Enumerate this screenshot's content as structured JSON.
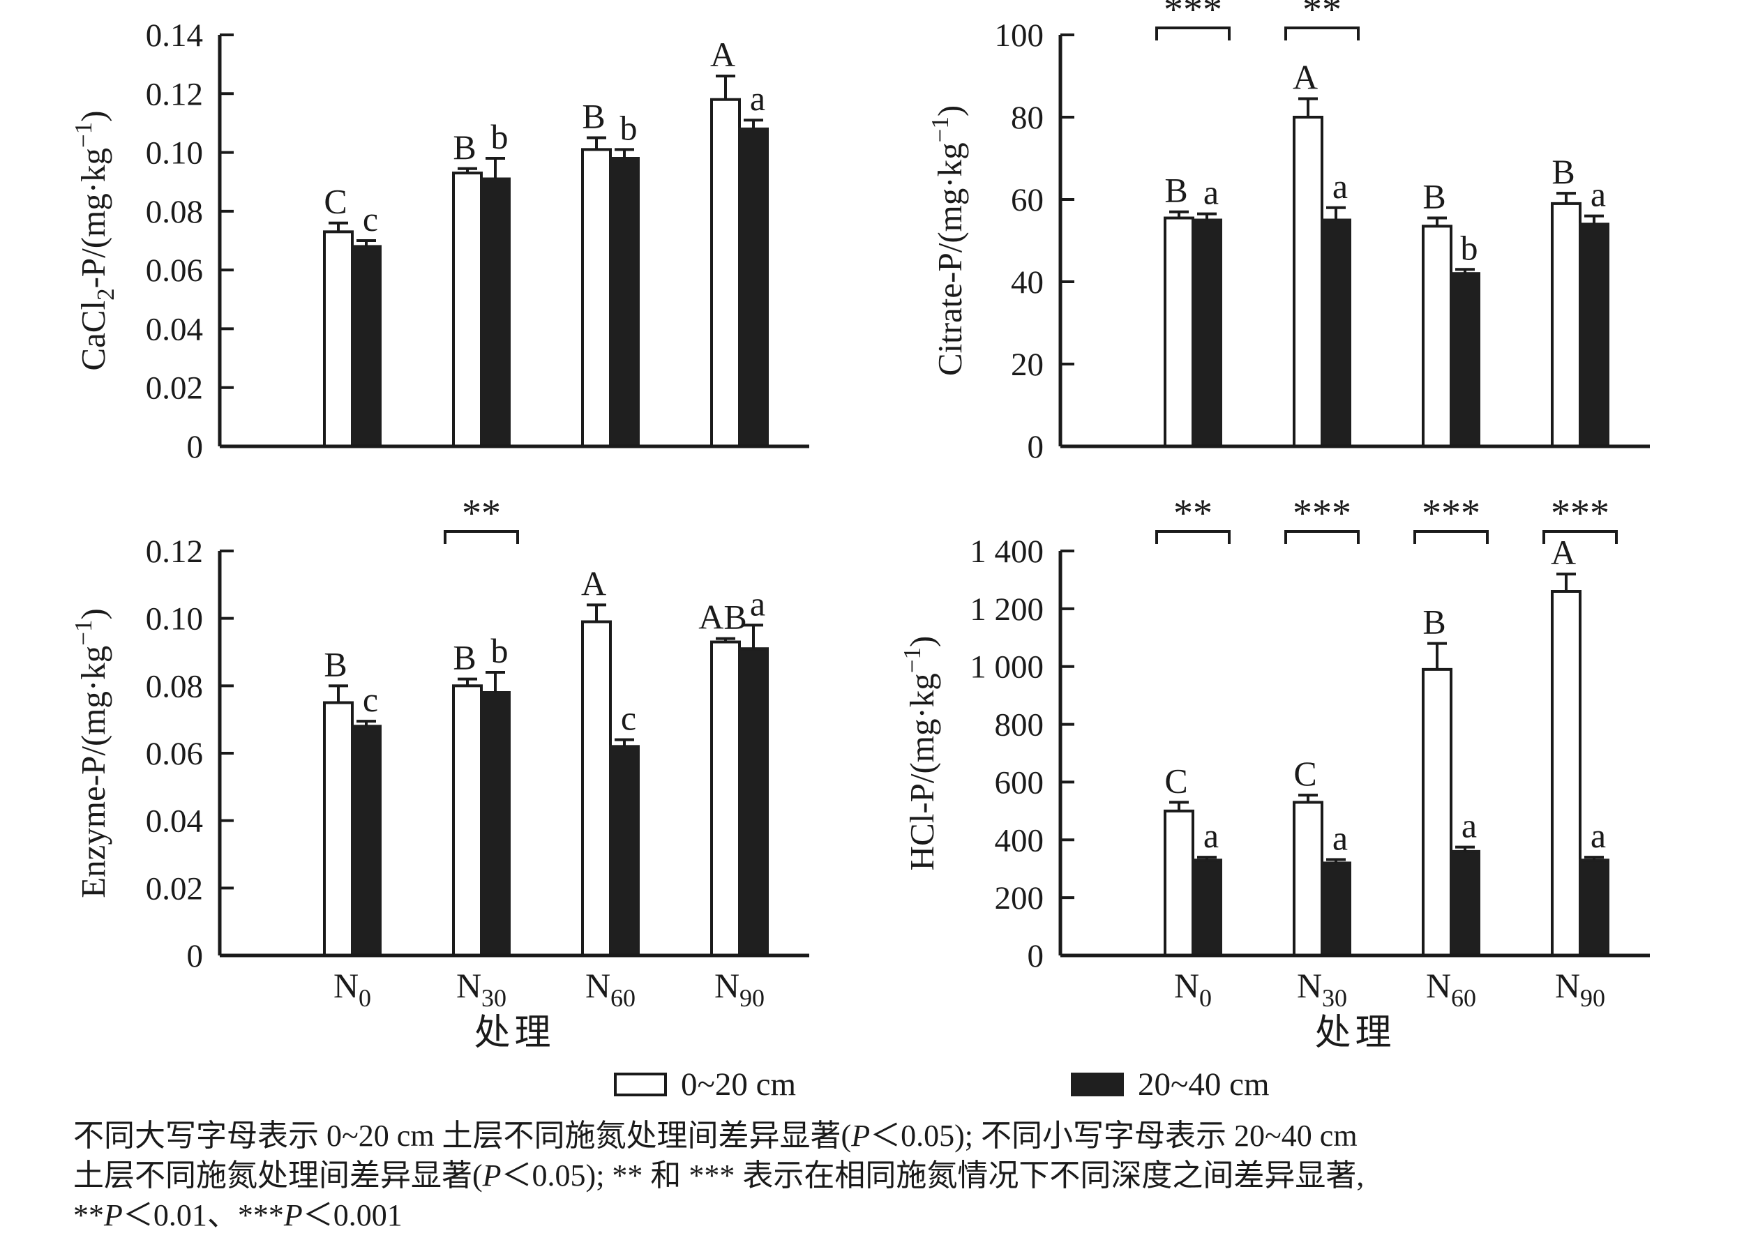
{
  "figure": {
    "xlabel": "处理",
    "colors": {
      "ink": "#1a1a1a",
      "bar_open": "#ffffff",
      "bar_filled": "#1f1f1f"
    },
    "legend": {
      "position": "bottom-center",
      "items": [
        {
          "label": "0~20 cm",
          "swatch": "open"
        },
        {
          "label": "20~40 cm",
          "swatch": "filled"
        }
      ]
    },
    "caption": {
      "lines": [
        [
          {
            "t": "不同大写字母表示 0~20 cm 土层不同施氮处理间差异显著("
          },
          {
            "t": "P",
            "i": 1
          },
          {
            "t": "＜0.05); 不同小写字母表示 20~40 cm"
          }
        ],
        [
          {
            "t": "土层不同施氮处理间差异显著("
          },
          {
            "t": "P",
            "i": 1
          },
          {
            "t": "＜0.05); ** 和 *** 表示在相同施氮情况下不同深度之间差异显著,"
          }
        ],
        [
          {
            "t": "**"
          },
          {
            "t": "P",
            "i": 1
          },
          {
            "t": "＜0.01、***"
          },
          {
            "t": "P",
            "i": 1
          },
          {
            "t": "＜0.001"
          }
        ]
      ]
    }
  },
  "chart_data": [
    {
      "type": "bar",
      "id": "cacl2-p",
      "title": "",
      "ylabel": "CaCl₂-P/(mg·kg⁻¹)",
      "ylabel_runs": [
        {
          "t": "CaCl"
        },
        {
          "t": "2",
          "sub": 1
        },
        {
          "t": "-P/(mg·kg"
        },
        {
          "t": "−1",
          "sup": 1
        },
        {
          "t": ")"
        }
      ],
      "xlabel": "处理",
      "ylim": [
        0,
        0.14
      ],
      "grid": false,
      "ytick_values": [
        0,
        0.02,
        0.04,
        0.06,
        0.08,
        0.1,
        0.12,
        0.14
      ],
      "ytick_labels": [
        "0",
        "0.02",
        "0.04",
        "0.06",
        "0.08",
        "0.10",
        "0.12",
        "0.14"
      ],
      "categories": [
        "N0",
        "N30",
        "N60",
        "N90"
      ],
      "series": [
        {
          "name": "0~20 cm",
          "values": [
            0.073,
            0.093,
            0.101,
            0.118
          ],
          "errors": [
            0.003,
            0.0015,
            0.004,
            0.008
          ],
          "letters": [
            "C",
            "B",
            "B",
            "A"
          ]
        },
        {
          "name": "20~40 cm",
          "values": [
            0.068,
            0.091,
            0.098,
            0.108
          ],
          "errors": [
            0.002,
            0.007,
            0.003,
            0.003
          ],
          "letters": [
            "c",
            "b",
            "b",
            "a"
          ]
        }
      ],
      "brackets": []
    },
    {
      "type": "bar",
      "id": "citrate-p",
      "title": "",
      "ylabel": "Citrate-P/(mg·kg⁻¹)",
      "ylabel_runs": [
        {
          "t": "Citrate-P/(mg·kg"
        },
        {
          "t": "−1",
          "sup": 1
        },
        {
          "t": ")"
        }
      ],
      "xlabel": "处理",
      "ylim": [
        0,
        100
      ],
      "grid": false,
      "ytick_values": [
        0,
        20,
        40,
        60,
        80,
        100
      ],
      "ytick_labels": [
        "0",
        "20",
        "40",
        "60",
        "80",
        "100"
      ],
      "categories": [
        "N0",
        "N30",
        "N60",
        "N90"
      ],
      "series": [
        {
          "name": "0~20 cm",
          "values": [
            55.5,
            80,
            53.5,
            59
          ],
          "errors": [
            1.5,
            4.5,
            2,
            2.5
          ],
          "letters": [
            "B",
            "A",
            "B",
            "B"
          ]
        },
        {
          "name": "20~40 cm",
          "values": [
            55,
            55,
            42,
            54
          ],
          "errors": [
            1.5,
            3,
            1,
            2
          ],
          "letters": [
            "a",
            "a",
            "b",
            "a"
          ]
        }
      ],
      "brackets": [
        {
          "group": 0,
          "stars": "***"
        },
        {
          "group": 1,
          "stars": "**"
        }
      ]
    },
    {
      "type": "bar",
      "id": "enzyme-p",
      "title": "",
      "ylabel": "Enzyme-P/(mg·kg⁻¹)",
      "ylabel_runs": [
        {
          "t": "Enzyme-P/(mg·kg"
        },
        {
          "t": "−1",
          "sup": 1
        },
        {
          "t": ")"
        }
      ],
      "xlabel": "处理",
      "ylim": [
        0,
        0.12
      ],
      "grid": false,
      "ytick_values": [
        0,
        0.02,
        0.04,
        0.06,
        0.08,
        0.1,
        0.12
      ],
      "ytick_labels": [
        "0",
        "0.02",
        "0.04",
        "0.06",
        "0.08",
        "0.10",
        "0.12"
      ],
      "categories": [
        "N0",
        "N30",
        "N60",
        "N90"
      ],
      "series": [
        {
          "name": "0~20 cm",
          "values": [
            0.075,
            0.08,
            0.099,
            0.093
          ],
          "errors": [
            0.005,
            0.002,
            0.005,
            0.001
          ],
          "letters": [
            "B",
            "B",
            "A",
            "AB"
          ]
        },
        {
          "name": "20~40 cm",
          "values": [
            0.068,
            0.078,
            0.062,
            0.091
          ],
          "errors": [
            0.0015,
            0.006,
            0.002,
            0.007
          ],
          "letters": [
            "c",
            "b",
            "c",
            "a"
          ]
        }
      ],
      "brackets": [
        {
          "group": 1,
          "stars": "**"
        }
      ]
    },
    {
      "type": "bar",
      "id": "hcl-p",
      "title": "",
      "ylabel": "HCl-P/(mg·kg⁻¹)",
      "ylabel_runs": [
        {
          "t": "HCl-P/(mg·kg"
        },
        {
          "t": "−1",
          "sup": 1
        },
        {
          "t": ")"
        }
      ],
      "xlabel": "处理",
      "ylim": [
        0,
        1400
      ],
      "grid": false,
      "ytick_values": [
        0,
        200,
        400,
        600,
        800,
        1000,
        1200,
        1400
      ],
      "ytick_labels": [
        "0",
        "200",
        "400",
        "600",
        "800",
        "1 000",
        "1 200",
        "1 400"
      ],
      "categories": [
        "N0",
        "N30",
        "N60",
        "N90"
      ],
      "series": [
        {
          "name": "0~20 cm",
          "values": [
            500,
            530,
            990,
            1260
          ],
          "errors": [
            30,
            25,
            90,
            60
          ],
          "letters": [
            "C",
            "C",
            "B",
            "A"
          ]
        },
        {
          "name": "20~40 cm",
          "values": [
            330,
            320,
            360,
            330
          ],
          "errors": [
            10,
            12,
            15,
            10
          ],
          "letters": [
            "a",
            "a",
            "a",
            "a"
          ]
        }
      ],
      "brackets": [
        {
          "group": 0,
          "stars": "**"
        },
        {
          "group": 1,
          "stars": "***"
        },
        {
          "group": 2,
          "stars": "***"
        },
        {
          "group": 3,
          "stars": "***"
        }
      ]
    }
  ]
}
